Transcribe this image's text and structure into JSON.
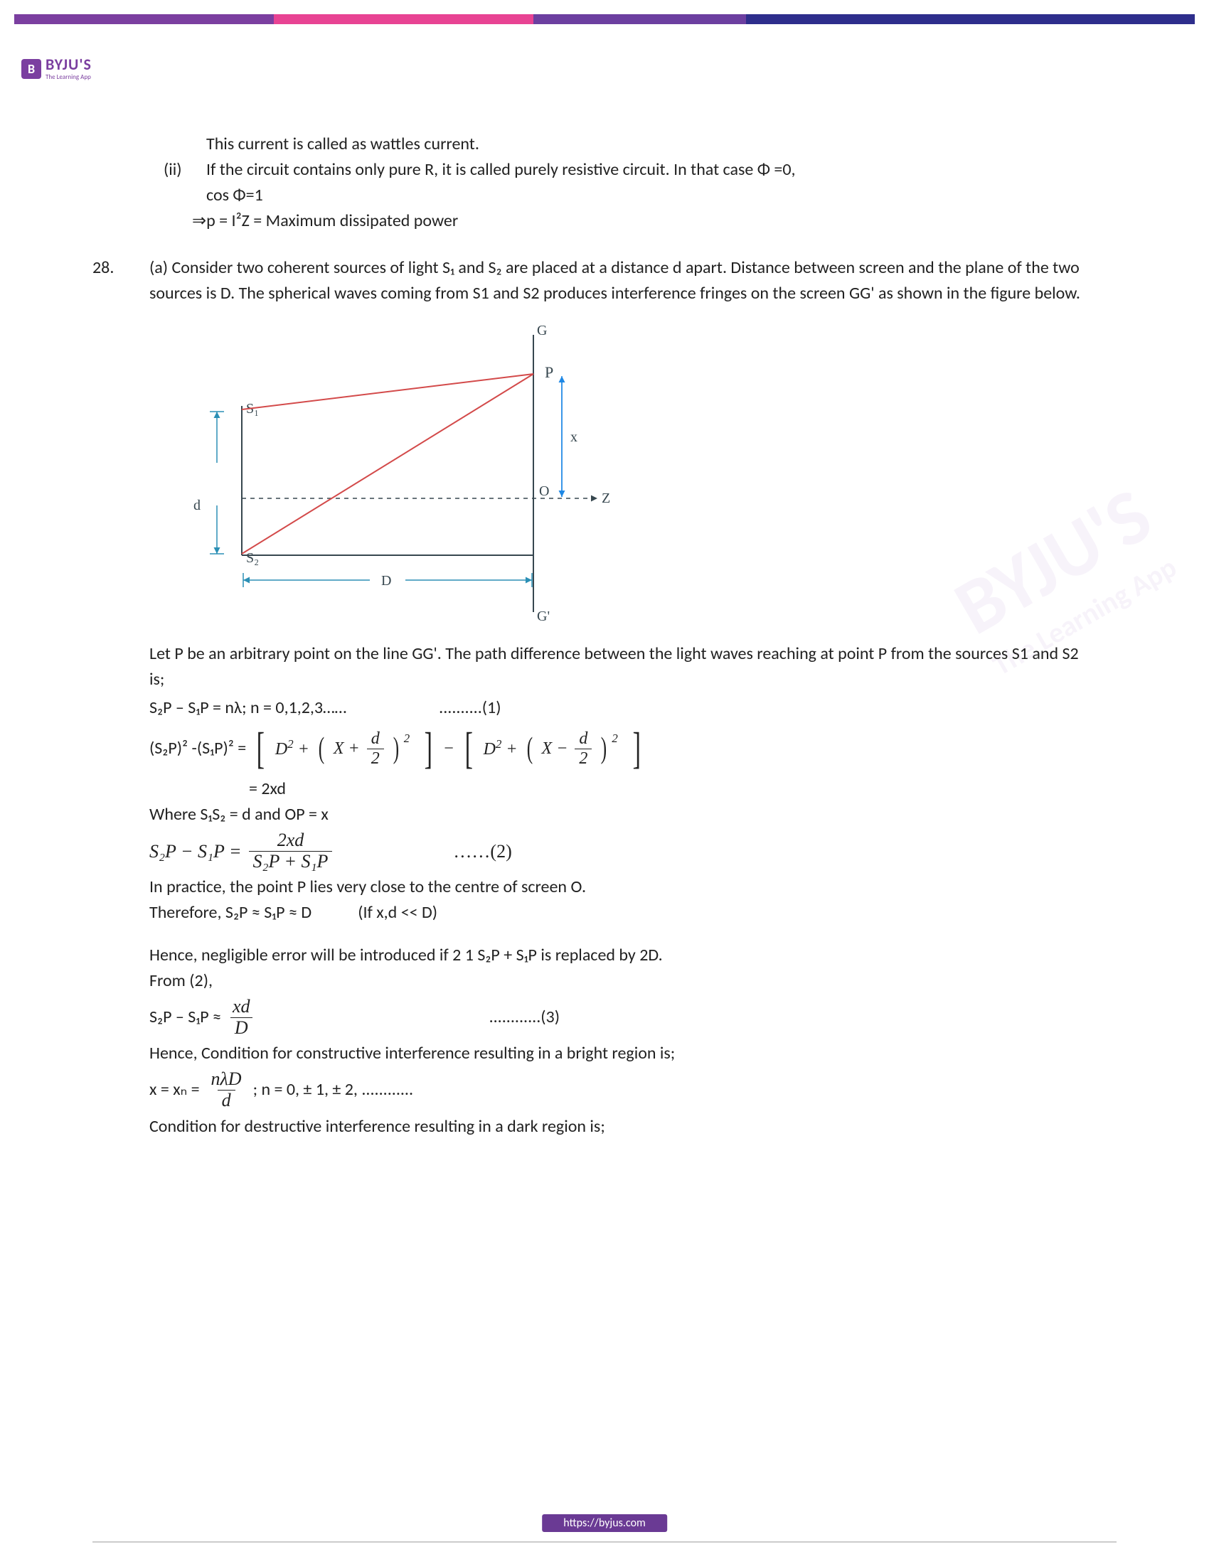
{
  "stripe_colors": [
    "#7b3fa0",
    "#e84393",
    "#6c3fa0",
    "#2e2e8c"
  ],
  "stripe_widths": [
    "22%",
    "22%",
    "18%",
    "38%"
  ],
  "logo": {
    "badge": "B",
    "main": "BYJU'S",
    "sub": "The Learning App"
  },
  "line_wattles": "This current is called as wattles current.",
  "roman_ii": "(ii)",
  "line_ii_1": "If the circuit contains only pure R, it is called purely resistive circuit. In that case Φ =0,",
  "line_ii_2": "cos Φ=1",
  "line_ii_3": "⇒p = I²Z = Maximum dissipated power",
  "q28_num": "28.",
  "q28_a_1": "(a) Consider two coherent sources of light S₁ and S₂ are placed at a distance d apart. Distance between screen and the plane of the two sources is D. The spherical waves coming from S1 and S2 produces interference fringes on the screen GG' as shown in the figure below.",
  "diagram": {
    "labels": {
      "G": "G",
      "Gp": "G'",
      "P": "P",
      "O": "O",
      "Z": "Z",
      "x": "x",
      "d": "d",
      "D": "D",
      "S1": "S₁",
      "S2": "S₂"
    },
    "colors": {
      "axis": "#37474f",
      "ray": "#d34a4a",
      "dim": "#2b8fb5",
      "arrow_blue": "#1e88e5"
    }
  },
  "para_letP": "Let P be an arbitrary point on the line GG'. The path difference between the light waves reaching at point P from the sources S1 and S2 is;",
  "eq1_left": "S₂P – S₁P = nλ; n = 0,1,2,3……",
  "eq1_right": "..........(1)",
  "eq_sq_lhs": "(S₂P)² -(S₁P)² = ",
  "eq_sq_mid1a": "D",
  "eq_sq_mid1b": "X",
  "eq_sq_frac_num": "d",
  "eq_sq_frac_den": "2",
  "eq_2xd_label": "= 2xd",
  "where_line": "Where S₁S₂ = d and OP = x",
  "eq2_lhs": "S₂P − S₁P =",
  "eq2_frac_num": "2xd",
  "eq2_frac_den": "S₂P + S₁P",
  "eq2_right": "……(2)",
  "practice_1": "In practice, the point P lies very close to the centre of screen O.",
  "practice_2": "Therefore, S₂P ≈ S₁P ≈ D            (If x,d << D)",
  "hence_1": "Hence, negligible error will be introduced if 2 1 S₂P + S₁P is replaced by 2D.",
  "from2": "From (2),",
  "eq3_lhs": "S₂P – S₁P ≈ ",
  "eq3_num": "xd",
  "eq3_den": "D",
  "eq3_right": "............(3)",
  "cond_bright": "Hence, Condition for constructive interference resulting in a bright region is;",
  "eqx_lhs": "x = xₙ = ",
  "eqx_num": "nλD",
  "eqx_den": "d",
  "eqx_tail": " ; n = 0, ± 1, ± 2, ............",
  "cond_dark": "Condition for destructive interference resulting in a dark region is;",
  "footer_url": "https://byjus.com",
  "footer_bg": "#6a3a94",
  "watermark_main": "BYJU'S",
  "watermark_sub": "The Learning App"
}
